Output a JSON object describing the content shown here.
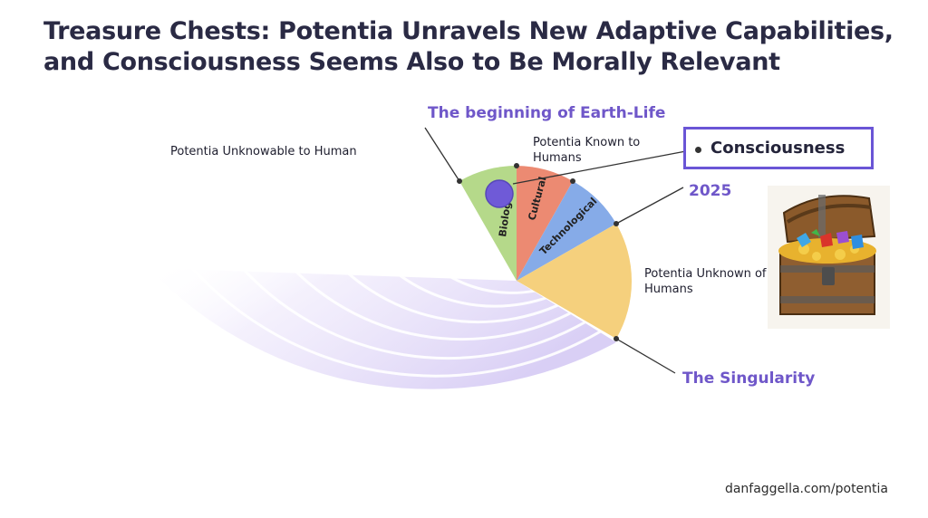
{
  "title": "Treasure Chests: Potentia Unravels New Adaptive Capabilities, and Consciousness Seems Also to Be Morally Relevant",
  "labels": {
    "unknowable": "Potentia Unknowable to Human",
    "beginning": "The beginning of Earth-Life",
    "known": "Potentia Known to Humans",
    "consciousness": "Consciousness",
    "year": "2025",
    "unknown": "Potentia Unknown of Humans",
    "singularity": "The Singularity"
  },
  "segments": {
    "biological": "Biolog",
    "cultural": "Cultural",
    "technological": "Technological"
  },
  "footer": "danfaggella.com/potentia",
  "colors": {
    "biological": "#b5d98a",
    "cultural": "#ec8a72",
    "technological": "#86abe8",
    "unknown": "#f5d07d",
    "accent": "#6f57c9",
    "lavender": "#ddd3f6"
  }
}
